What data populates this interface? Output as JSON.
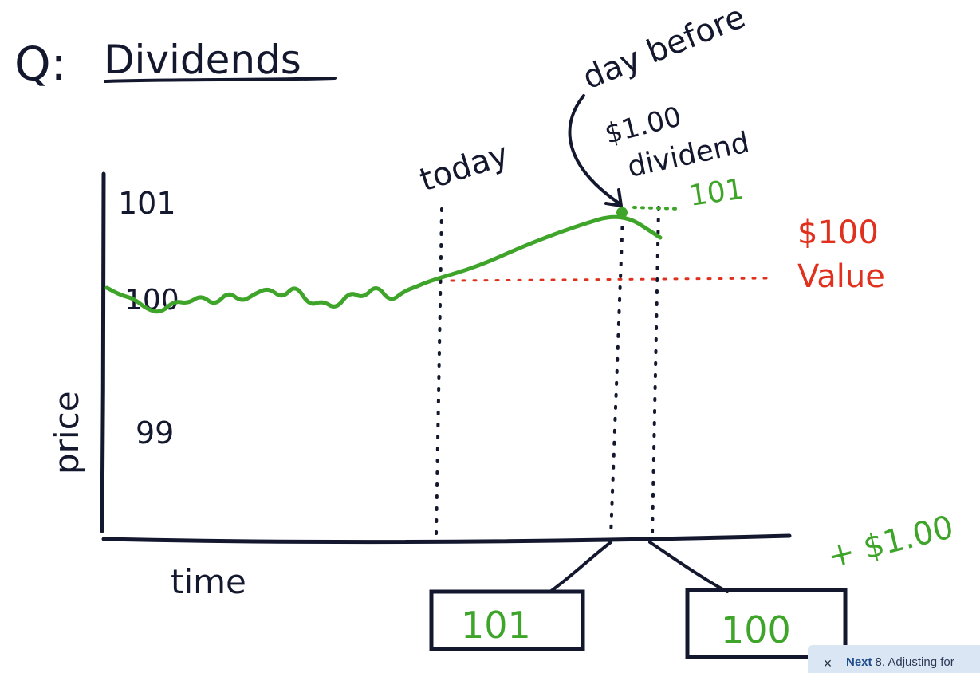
{
  "title": {
    "prefix": "Q:",
    "text": "Dividends"
  },
  "axes": {
    "ylabel": "price",
    "xlabel": "time",
    "y_ticks": [
      "101",
      "100",
      "99"
    ]
  },
  "annotations": {
    "today": "today",
    "day_before": "day before",
    "dividend_amount": "$1.00",
    "dividend_word": "dividend",
    "peak_label": "101",
    "value_line_amount": "$100",
    "value_line_word": "Value",
    "plus_dividend": "+ $1.00"
  },
  "boxes": {
    "before": "101",
    "after": "100"
  },
  "chart_data": {
    "type": "line",
    "ylim": [
      98.6,
      101.2
    ],
    "y_ticks": [
      101,
      100,
      99
    ],
    "series": [
      {
        "values": [
          99.9,
          99.8,
          99.75,
          99.6,
          99.55,
          99.72,
          99.68,
          99.8,
          99.65,
          99.85,
          99.7,
          99.82,
          99.9,
          99.75,
          99.95,
          99.65,
          99.72,
          99.6,
          99.85,
          99.75,
          99.95,
          99.7,
          99.85,
          99.92,
          100.0,
          100.2,
          100.5,
          100.75,
          100.95,
          100.6
        ]
      }
    ]
  },
  "colors": {
    "ink": "#14182e",
    "price_line": "#3fa52a",
    "value_line": "#e0301e"
  },
  "next_bar": {
    "close_icon": "close-icon",
    "label": "Next",
    "text": "8. Adjusting for"
  }
}
